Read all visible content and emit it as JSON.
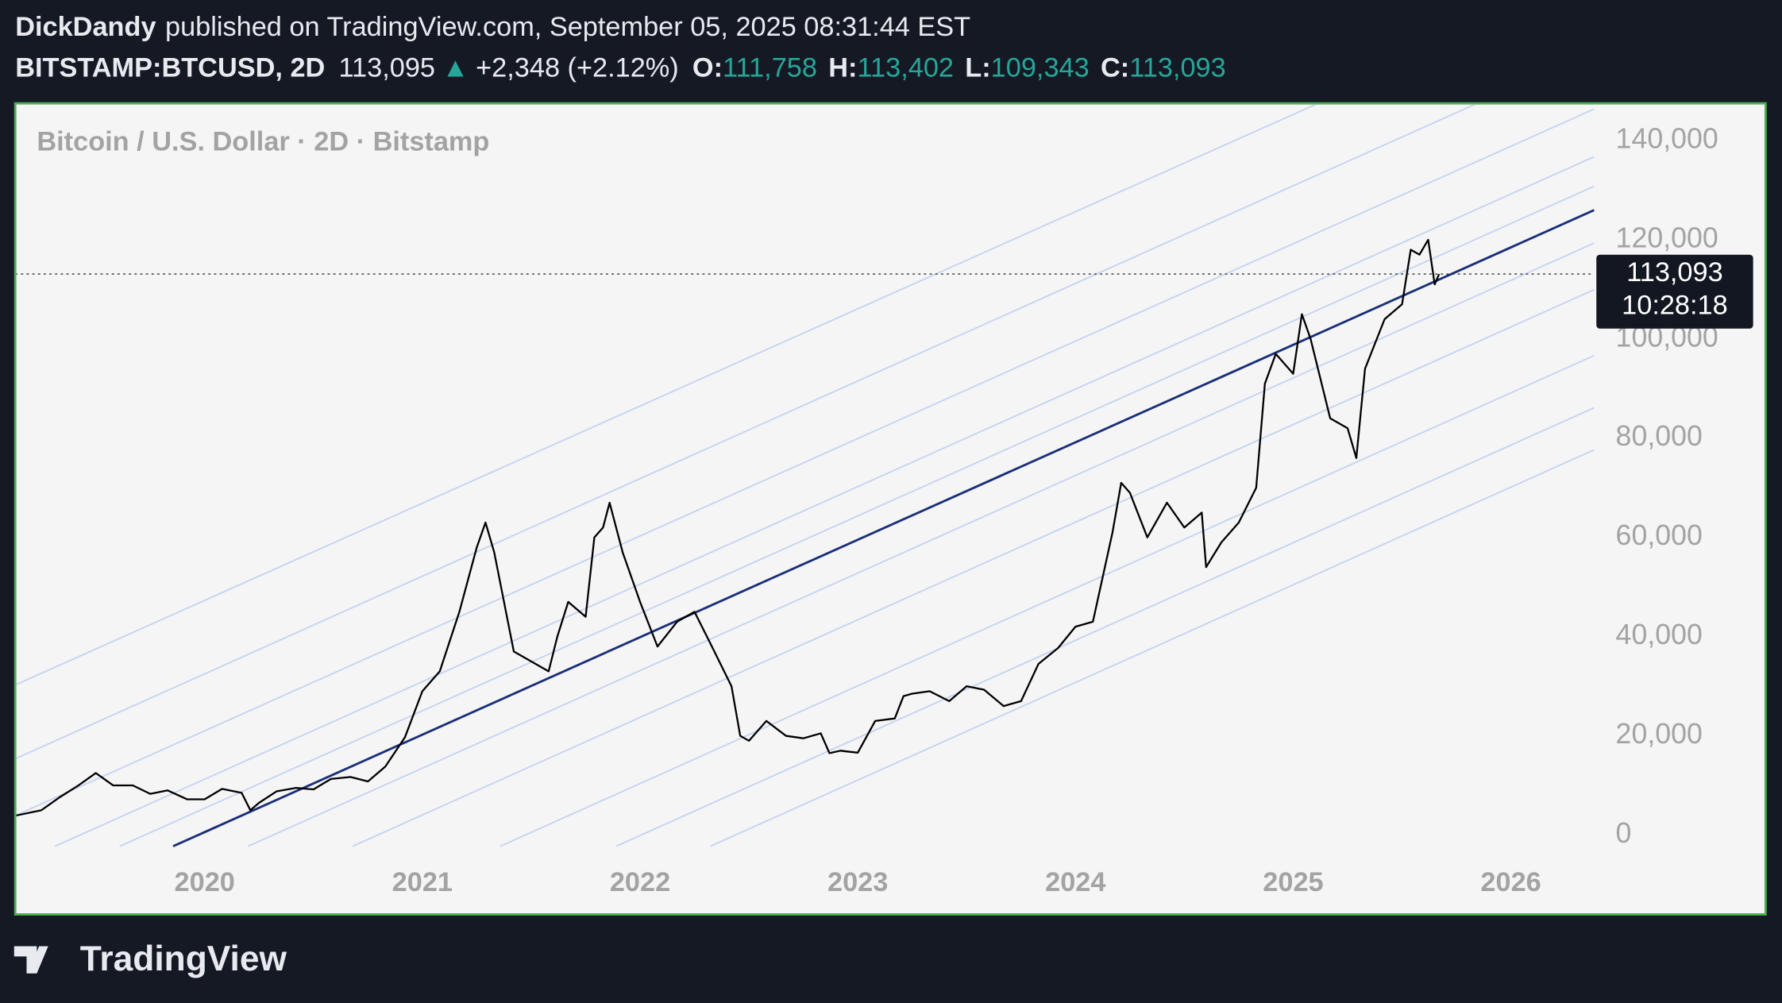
{
  "header": {
    "publisher": "DickDandy",
    "published": "published on TradingView.com, September 05, 2025 08:31:44 EST",
    "symbol": "BITSTAMP:BTCUSD, 2D",
    "last": "113,095",
    "arrow": "▲",
    "change": "+2,348 (+2.12%)",
    "ohlc": [
      {
        "label": "O:",
        "value": "111,758"
      },
      {
        "label": "H:",
        "value": "113,402"
      },
      {
        "label": "L:",
        "value": "109,343"
      },
      {
        "label": "C:",
        "value": "113,093"
      }
    ]
  },
  "price_label": {
    "price": "113,093",
    "countdown": "10:28:18"
  },
  "footer": {
    "logo": "TradingView"
  },
  "chart_data": {
    "type": "line",
    "title": "Bitcoin / U.S. Dollar · 2D · Bitstamp",
    "x": [
      2019.13,
      2019.25,
      2019.33,
      2019.42,
      2019.5,
      2019.58,
      2019.67,
      2019.75,
      2019.83,
      2019.92,
      2020.0,
      2020.08,
      2020.17,
      2020.21,
      2020.25,
      2020.33,
      2020.42,
      2020.5,
      2020.58,
      2020.67,
      2020.75,
      2020.83,
      2020.92,
      2021.0,
      2021.08,
      2021.17,
      2021.25,
      2021.29,
      2021.33,
      2021.42,
      2021.5,
      2021.58,
      2021.62,
      2021.67,
      2021.75,
      2021.79,
      2021.83,
      2021.86,
      2021.92,
      2022.0,
      2022.08,
      2022.17,
      2022.25,
      2022.33,
      2022.42,
      2022.46,
      2022.5,
      2022.58,
      2022.67,
      2022.75,
      2022.83,
      2022.87,
      2022.92,
      2023.0,
      2023.08,
      2023.17,
      2023.21,
      2023.25,
      2023.33,
      2023.42,
      2023.5,
      2023.58,
      2023.67,
      2023.75,
      2023.83,
      2023.92,
      2024.0,
      2024.08,
      2024.17,
      2024.21,
      2024.25,
      2024.33,
      2024.42,
      2024.5,
      2024.58,
      2024.6,
      2024.67,
      2024.75,
      2024.83,
      2024.87,
      2024.92,
      2025.0,
      2025.04,
      2025.08,
      2025.17,
      2025.25,
      2025.29,
      2025.33,
      2025.42,
      2025.5,
      2025.54,
      2025.58,
      2025.62,
      2025.65,
      2025.67
    ],
    "series": [
      {
        "name": "BTCUSD",
        "color": "#000000",
        "values": [
          3900,
          5000,
          7500,
          10000,
          12500,
          10000,
          10000,
          8300,
          9000,
          7200,
          7200,
          9300,
          8500,
          5000,
          6500,
          8800,
          9500,
          9200,
          11300,
          11700,
          10800,
          13800,
          19700,
          29000,
          33000,
          45000,
          58000,
          63000,
          57000,
          37000,
          35000,
          33000,
          40000,
          47000,
          44000,
          60000,
          62000,
          67000,
          57000,
          47000,
          38000,
          43000,
          45000,
          38000,
          30000,
          20000,
          19000,
          23000,
          20000,
          19500,
          20500,
          16500,
          17000,
          16600,
          23000,
          23500,
          28000,
          28500,
          29000,
          27000,
          30000,
          29300,
          26000,
          27000,
          34500,
          37700,
          42000,
          43000,
          61000,
          71000,
          69000,
          60000,
          67000,
          62000,
          65000,
          54000,
          59000,
          63000,
          70000,
          91000,
          97000,
          93000,
          105000,
          100000,
          84000,
          82000,
          76000,
          94000,
          104000,
          107000,
          118000,
          117000,
          120000,
          111000,
          113093
        ]
      }
    ],
    "xlim": [
      2019.13,
      2027.17
    ],
    "xticks": [
      2020,
      2021,
      2022,
      2023,
      2024,
      2025,
      2026
    ],
    "ylim": [
      -16000,
      147500
    ],
    "yticks": [
      0,
      {
        "value": 20000,
        "label": "20,000"
      },
      {
        "value": 40000,
        "label": "40,000"
      },
      {
        "value": 60000,
        "label": "60,000"
      },
      {
        "value": 80000,
        "label": "80,000"
      },
      {
        "value": 100000,
        "label": "100,000"
      },
      {
        "value": 120000,
        "label": "120,000"
      },
      {
        "value": 140000,
        "label": "140,000"
      }
    ],
    "grid": false
  }
}
